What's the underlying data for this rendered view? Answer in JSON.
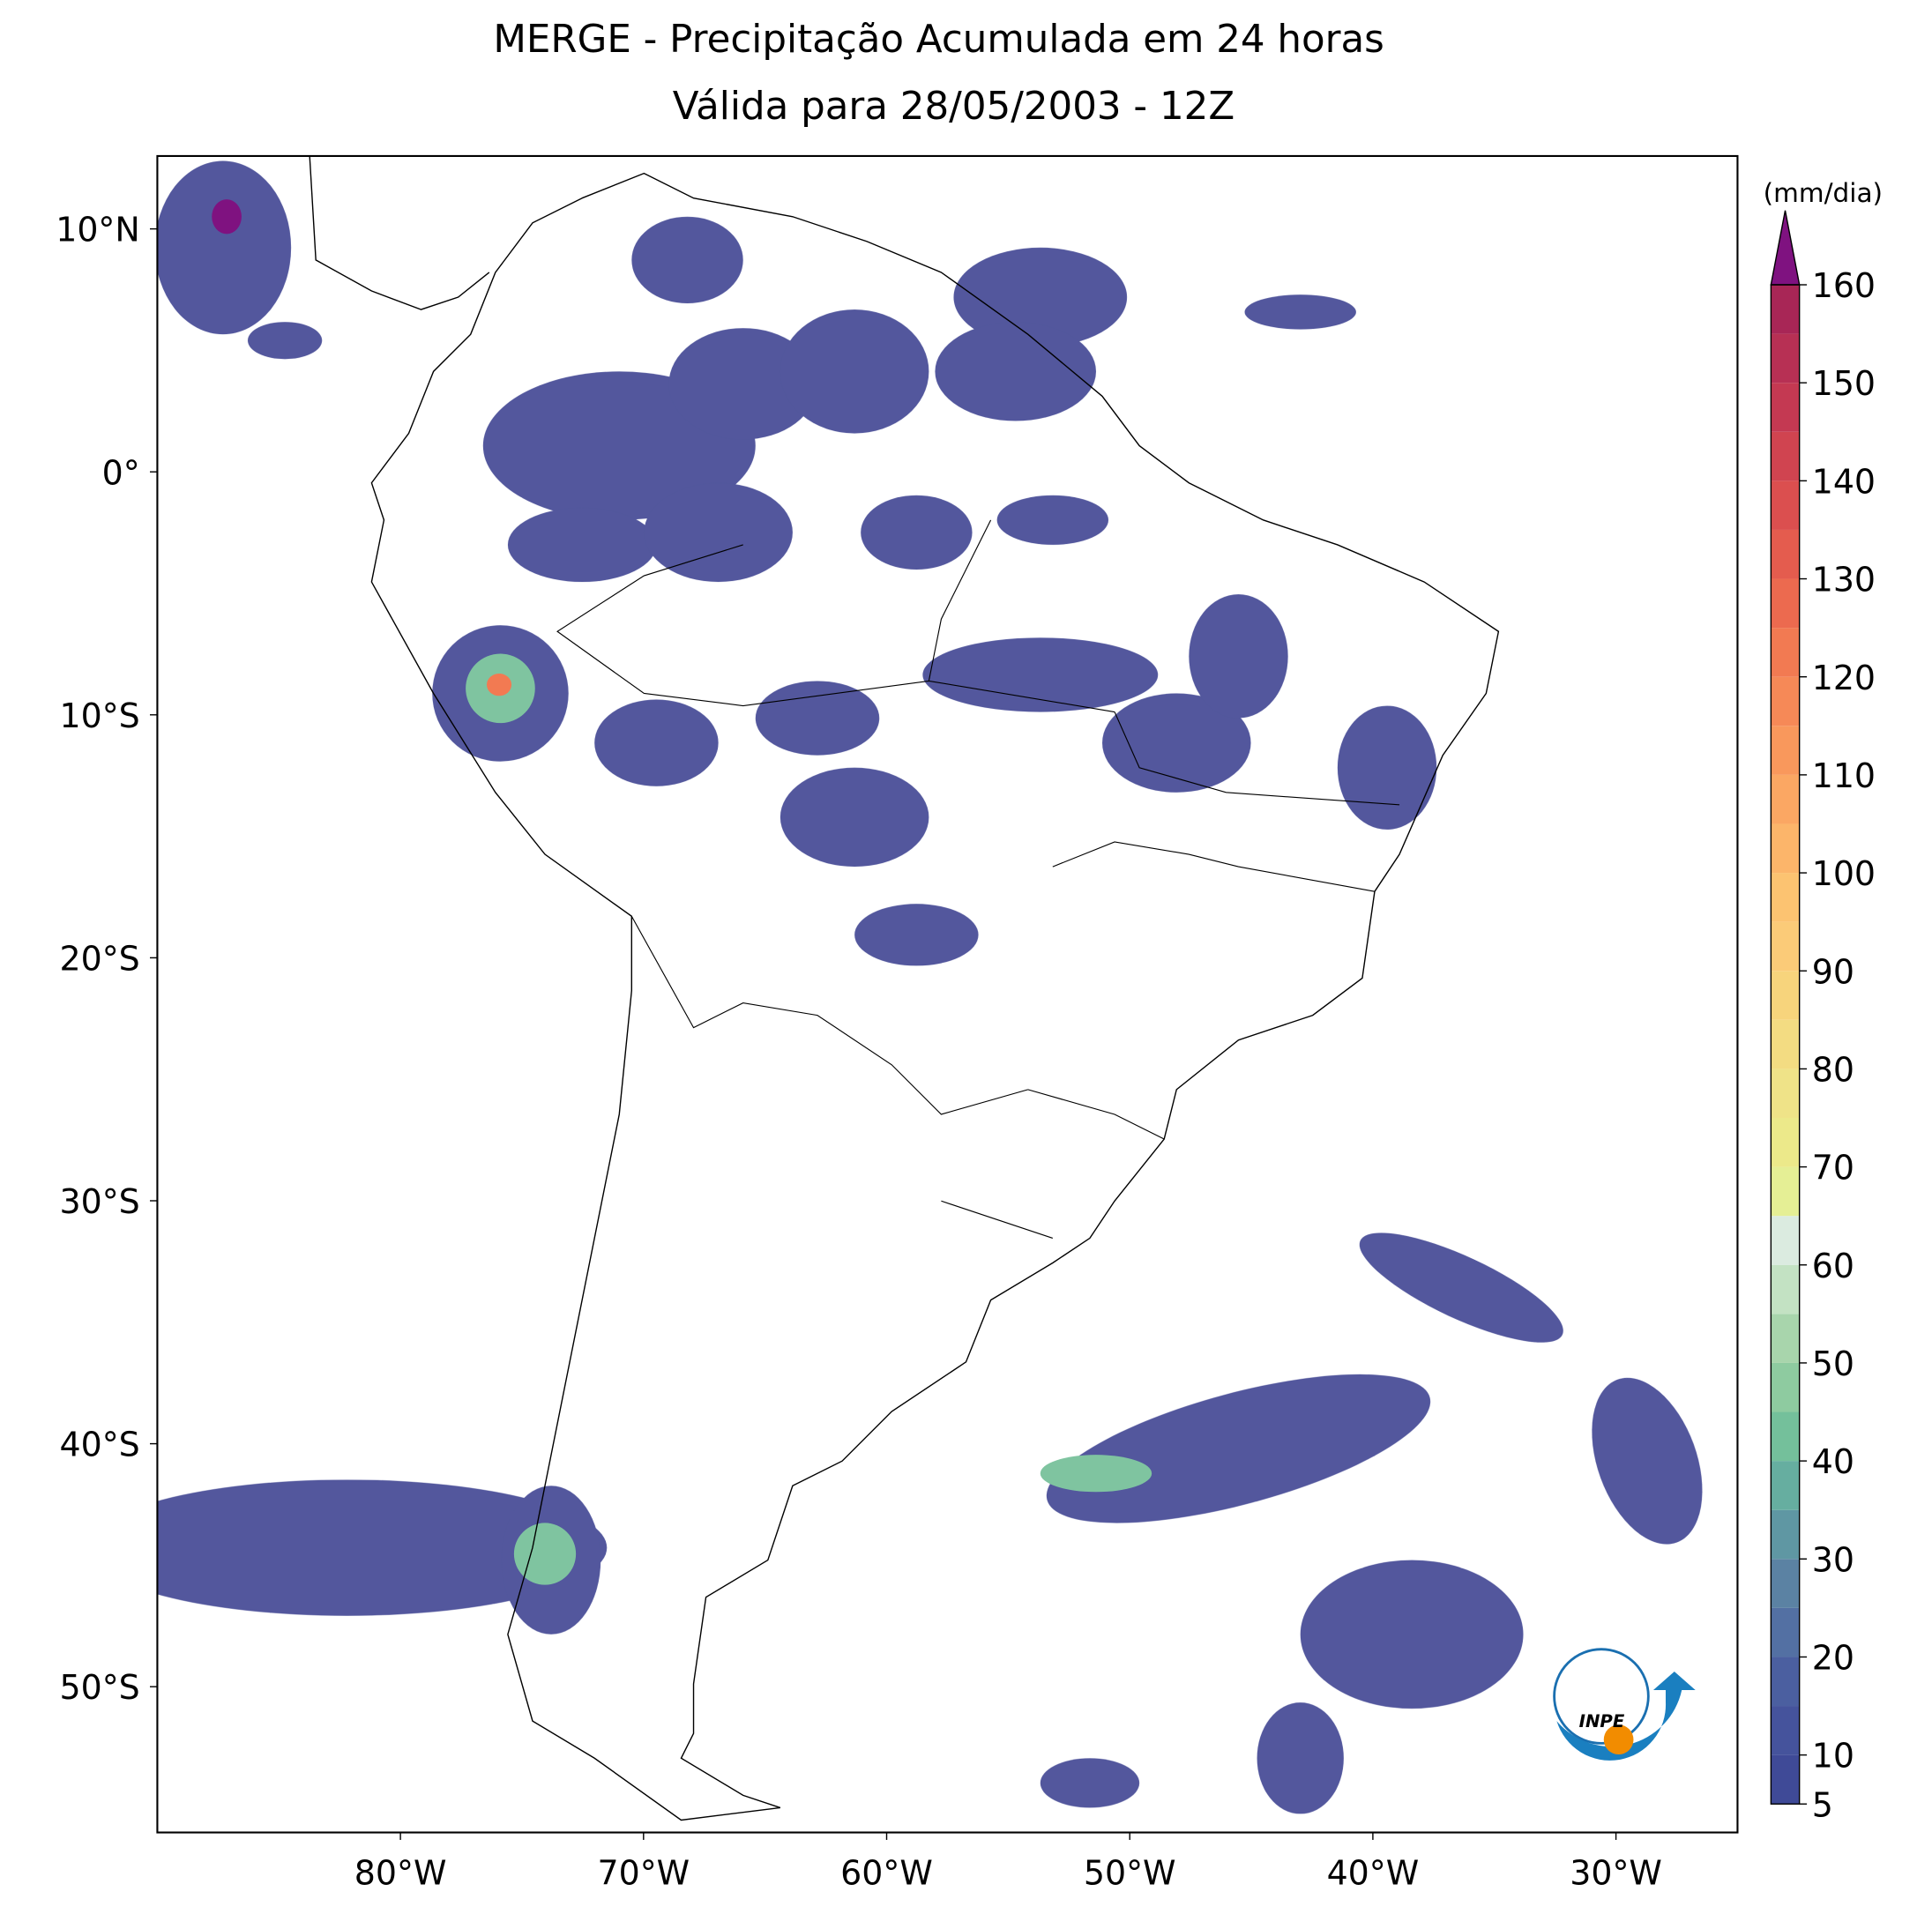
{
  "map": {
    "title": "MERGE - Precipitação Acumulada em 24 horas",
    "subtitle": "Válida para 28/05/2003 - 12Z",
    "xlim": [
      -90,
      -25
    ],
    "ylim": [
      -56,
      13
    ],
    "xticks": [
      {
        "value": -80,
        "label": "80°W"
      },
      {
        "value": -70,
        "label": "70°W"
      },
      {
        "value": -60,
        "label": "60°W"
      },
      {
        "value": -50,
        "label": "50°W"
      },
      {
        "value": -40,
        "label": "40°W"
      },
      {
        "value": -30,
        "label": "30°W"
      }
    ],
    "yticks": [
      {
        "value": 10,
        "label": "10°N"
      },
      {
        "value": 0,
        "label": "0°"
      },
      {
        "value": -10,
        "label": "10°S"
      },
      {
        "value": -20,
        "label": "20°S"
      },
      {
        "value": -30,
        "label": "30°S"
      },
      {
        "value": -40,
        "label": "40°S"
      },
      {
        "value": -50,
        "label": "50°S"
      }
    ],
    "logo": "INPE"
  },
  "colorbar": {
    "units": "(mm/dia)",
    "range": [
      5,
      160
    ],
    "ticks": [
      5,
      10,
      20,
      30,
      40,
      50,
      60,
      70,
      80,
      90,
      100,
      110,
      120,
      130,
      140,
      150,
      160
    ],
    "step": 5,
    "colors": [
      "#3f4a97",
      "#45539c",
      "#4b5fa0",
      "#5370a3",
      "#5b82a3",
      "#5f97a3",
      "#66aea0",
      "#74c09b",
      "#8ecba0",
      "#a8d5ac",
      "#c3e2c3",
      "#dbebe0",
      "#e5ef95",
      "#ece98a",
      "#efe388",
      "#f3dc82",
      "#f7d47c",
      "#fbcb78",
      "#fcc371",
      "#fcb56a",
      "#fba763",
      "#f9985c",
      "#f68957",
      "#f27a52",
      "#ec6a4f",
      "#e45c4e",
      "#db4f4f",
      "#d04450",
      "#c43952",
      "#b73054",
      "#a82656"
    ],
    "extend_color": "#7f1280"
  }
}
